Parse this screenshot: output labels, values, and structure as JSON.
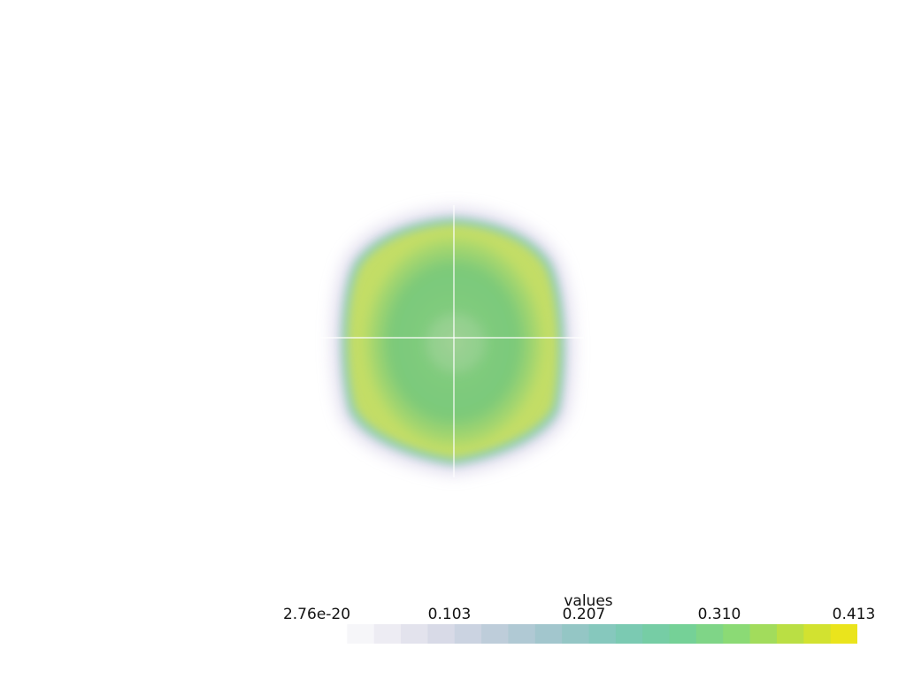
{
  "scalar_bar": {
    "title": "values",
    "ticks": [
      "2.76e-20",
      "0.103",
      "0.207",
      "0.310",
      "0.413"
    ],
    "colormap": [
      "#ffffff",
      "#ecebf2",
      "#d6d8e6",
      "#b9cbd8",
      "#9cc5ca",
      "#7ec9b8",
      "#72cf9c",
      "#86d97a",
      "#b7df46",
      "#eae41c"
    ]
  },
  "colors": {
    "background": "#ffffff",
    "volume_core": "#7dca7d",
    "volume_rim": "#c8df62",
    "volume_halo": "#c9c4e0",
    "crosshair": "#ffffff"
  }
}
